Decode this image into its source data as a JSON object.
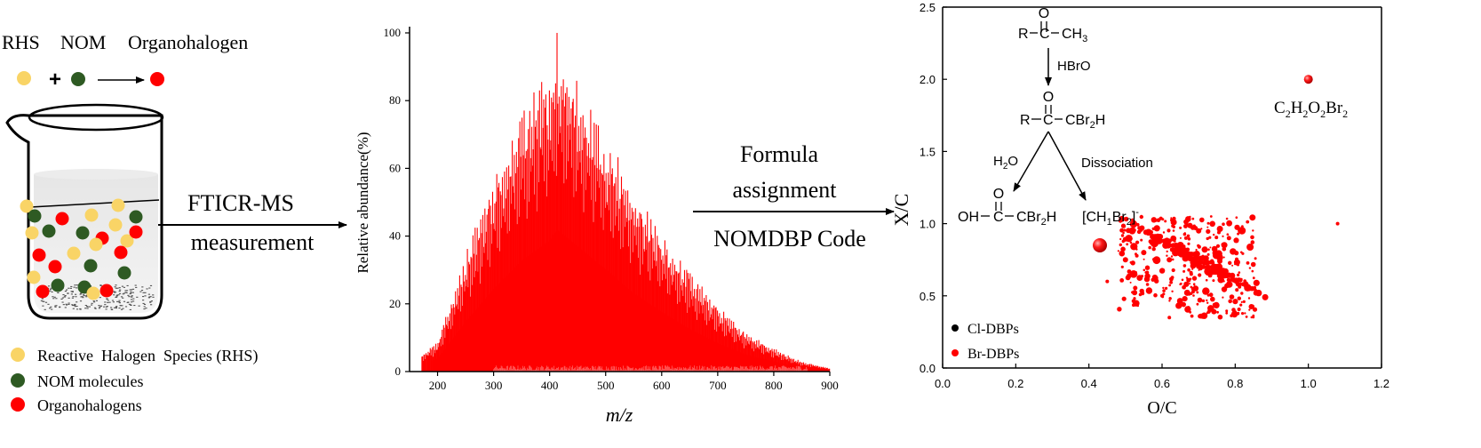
{
  "workflow": {
    "reaction": {
      "rhs": "RHS",
      "nom": "NOM",
      "organohalogen": "Organohalogen",
      "plus": "+"
    },
    "legend": [
      {
        "label": "Reactive  Halogen  Species (RHS)",
        "color": "#f9d466"
      },
      {
        "label": "NOM molecules",
        "color": "#2e5a23"
      },
      {
        "label": "Organohalogens",
        "color": "#ff0000"
      }
    ],
    "step1": {
      "line1": "FTICR-MS",
      "line2": "measurement"
    },
    "step2": {
      "line1": "Formula",
      "line2": "assignment",
      "line3": "NOMDBP Code"
    }
  },
  "colors": {
    "red": "#ff0000",
    "yellow": "#f9d466",
    "green": "#2e5a23",
    "black": "#000000"
  },
  "chart_data": [
    {
      "type": "bar",
      "xlabel": "m/z",
      "ylabel": "Relative abundance(%)",
      "xlim": [
        150,
        900
      ],
      "ylim": [
        0,
        100
      ],
      "x_ticks": [
        "200",
        "300",
        "400",
        "500",
        "600",
        "700",
        "800",
        "900"
      ],
      "y_ticks": [
        "0",
        "20",
        "40",
        "60",
        "80",
        "100"
      ],
      "envelope": {
        "x": [
          170,
          200,
          250,
          300,
          350,
          400,
          413,
          450,
          500,
          550,
          600,
          650,
          700,
          750,
          800,
          850,
          900
        ],
        "y": [
          5,
          9,
          35,
          58,
          78,
          92,
          100,
          88,
          72,
          55,
          42,
          30,
          20,
          12,
          7,
          3,
          1
        ]
      },
      "color": "#ff0000",
      "grid": false
    },
    {
      "type": "scatter",
      "xlabel": "O/C",
      "ylabel": "X/C",
      "xlim": [
        0,
        1.2
      ],
      "ylim": [
        0,
        2.5
      ],
      "x_ticks": [
        "0.0",
        "0.2",
        "0.4",
        "0.6",
        "0.8",
        "1.0",
        "1.2"
      ],
      "y_ticks": [
        "0.0",
        "0.5",
        "1.0",
        "1.5",
        "2.0",
        "2.5"
      ],
      "legend_position": "bottom-left",
      "series": [
        {
          "name": "Cl-DBPs",
          "color": "#000000",
          "points": []
        },
        {
          "name": "Br-DBPs",
          "color": "#ff0000",
          "points": [
            {
              "x": 1.0,
              "y": 2.0,
              "size": 5
            },
            {
              "x": 0.43,
              "y": 0.85,
              "size": 8
            },
            {
              "x": 1.08,
              "y": 1.0,
              "size": 2
            },
            {
              "x": 0.5,
              "y": 0.75,
              "size": 3
            },
            {
              "x": 0.58,
              "y": 0.9,
              "size": 4
            },
            {
              "x": 0.65,
              "y": 0.85,
              "size": 4
            },
            {
              "x": 0.7,
              "y": 0.95,
              "size": 3
            },
            {
              "x": 0.62,
              "y": 0.75,
              "size": 3
            },
            {
              "x": 0.55,
              "y": 0.8,
              "size": 3
            },
            {
              "x": 0.6,
              "y": 0.5,
              "size": 2
            },
            {
              "x": 0.68,
              "y": 0.65,
              "size": 2
            },
            {
              "x": 0.45,
              "y": 0.6,
              "size": 2
            },
            {
              "x": 0.75,
              "y": 0.7,
              "size": 2
            },
            {
              "x": 0.8,
              "y": 0.6,
              "size": 2
            },
            {
              "x": 0.62,
              "y": 0.35,
              "size": 2
            }
          ]
        }
      ]
    }
  ],
  "chemistry": {
    "r": "R",
    "ch3": "CH",
    "ch3_sub": "3",
    "o": "O",
    "reagent": "HBrO",
    "cbr2h": "CBr",
    "cbr2h_sub": "2",
    "cbr2h_tail": "H",
    "h2o": "H",
    "h2o_sub": "2",
    "h2o_tail": "O",
    "dissociation": "Dissociation",
    "oh": "OH",
    "ion": "[CH",
    "ion_sub1": "1",
    "ion_mid": "Br",
    "ion_sub2": "2",
    "ion_tail": "]",
    "ion_sup": "-",
    "annot": "C",
    "annot_s1": "2",
    "annot_h": "H",
    "annot_s2": "2",
    "annot_o": "O",
    "annot_s3": "2",
    "annot_br": "Br",
    "annot_s4": "2"
  }
}
